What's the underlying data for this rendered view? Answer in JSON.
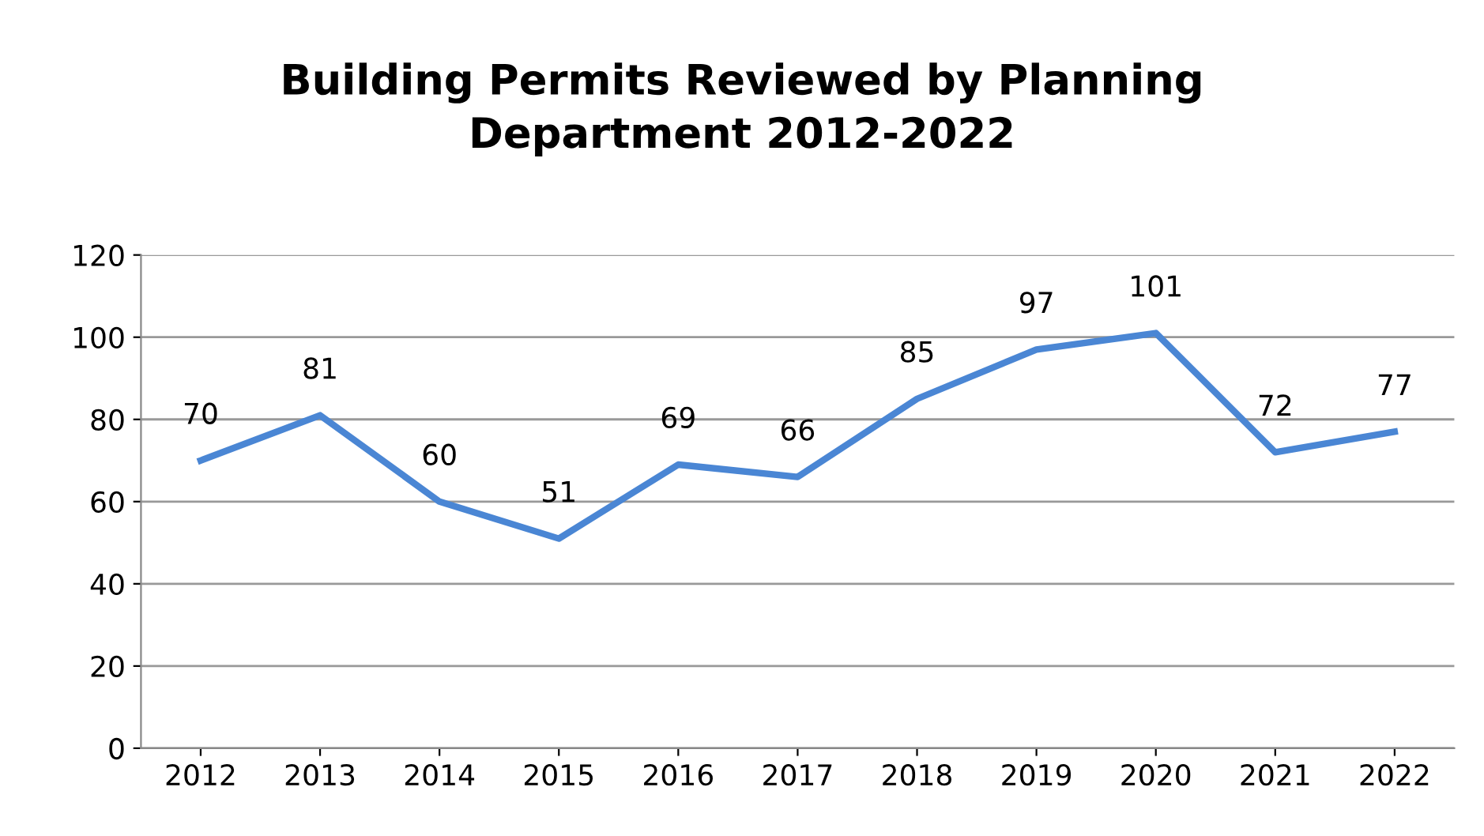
{
  "chart_data": {
    "type": "line",
    "title": "Building Permits Reviewed by Planning\nDepartment 2012-2022",
    "categories": [
      "2012",
      "2013",
      "2014",
      "2015",
      "2016",
      "2017",
      "2018",
      "2019",
      "2020",
      "2021",
      "2022"
    ],
    "series": [
      {
        "color": "#4a86d4",
        "values": [
          70,
          81,
          60,
          51,
          69,
          66,
          85,
          97,
          101,
          72,
          77
        ]
      }
    ],
    "ylim": [
      0,
      120
    ],
    "yticks": [
      0,
      20,
      40,
      60,
      80,
      100,
      120
    ],
    "grid": "y",
    "data_labels": true,
    "marker": "none",
    "line_style": "solid"
  }
}
